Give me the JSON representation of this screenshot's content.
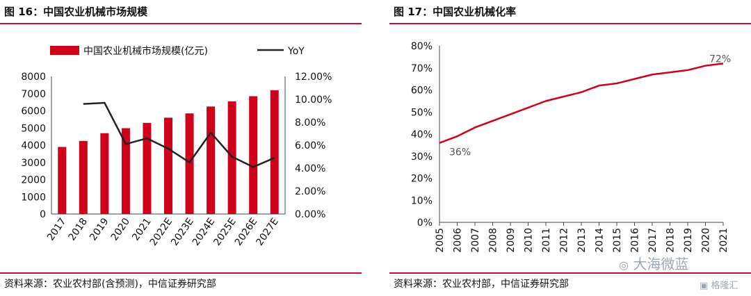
{
  "left": {
    "title": "图 16：中国农业机械市场规模",
    "source": "资料来源：农业农村部(含预测)，中信证券研究部",
    "colors": {
      "bar": "#d0021b",
      "line": "#222222",
      "rule": "#c8102e"
    },
    "chart_data": {
      "type": "bar",
      "categories": [
        "2017",
        "2018",
        "2019",
        "2020",
        "2021",
        "2022E",
        "2023E",
        "2024E",
        "2025E",
        "2026E",
        "2027E"
      ],
      "series": [
        {
          "name": "中国农业机械市场规模(亿元)",
          "type": "bar",
          "axis": "left",
          "values": [
            3900,
            4250,
            4700,
            4990,
            5300,
            5600,
            5850,
            6250,
            6550,
            6850,
            7200
          ]
        },
        {
          "name": "YoY",
          "type": "line",
          "axis": "right",
          "values": [
            null,
            0.096,
            0.097,
            0.061,
            0.066,
            0.057,
            0.045,
            0.071,
            0.05,
            0.041,
            0.049
          ]
        }
      ],
      "ylim_left": [
        0,
        8000
      ],
      "ylim_right": [
        0,
        0.12
      ],
      "y_ticks_left": [
        "0",
        "1000",
        "2000",
        "3000",
        "4000",
        "5000",
        "6000",
        "7000",
        "8000"
      ],
      "y_ticks_right": [
        "0.00%",
        "2.00%",
        "4.00%",
        "6.00%",
        "8.00%",
        "10.00%",
        "12.00%"
      ],
      "legend": [
        "中国农业机械市场规模(亿元)",
        "YoY"
      ],
      "legend_position": "top",
      "grid": false
    }
  },
  "right": {
    "title": "图 17：中国农业机械化率",
    "source": "资料来源：农业农村部，中信证券研究部",
    "colors": {
      "line": "#d0021b",
      "rule": "#c8102e"
    },
    "chart_data": {
      "type": "line",
      "x": [
        "2005",
        "2006",
        "2007",
        "2008",
        "2009",
        "2010",
        "2011",
        "2012",
        "2013",
        "2014",
        "2015",
        "2016",
        "2017",
        "2018",
        "2019",
        "2020",
        "2021"
      ],
      "series": [
        {
          "values": [
            0.36,
            0.39,
            0.43,
            0.46,
            0.49,
            0.52,
            0.55,
            0.57,
            0.59,
            0.62,
            0.63,
            0.65,
            0.67,
            0.68,
            0.69,
            0.71,
            0.72
          ]
        }
      ],
      "ylim": [
        0,
        0.8
      ],
      "y_ticks": [
        "0%",
        "10%",
        "20%",
        "30%",
        "40%",
        "50%",
        "60%",
        "70%",
        "80%"
      ],
      "annotations": [
        {
          "x": "2005",
          "label": "36%"
        },
        {
          "x": "2021",
          "label": "72%"
        }
      ],
      "grid": false
    },
    "watermark_text": "大海微蓝",
    "logo_text": "格隆汇"
  }
}
